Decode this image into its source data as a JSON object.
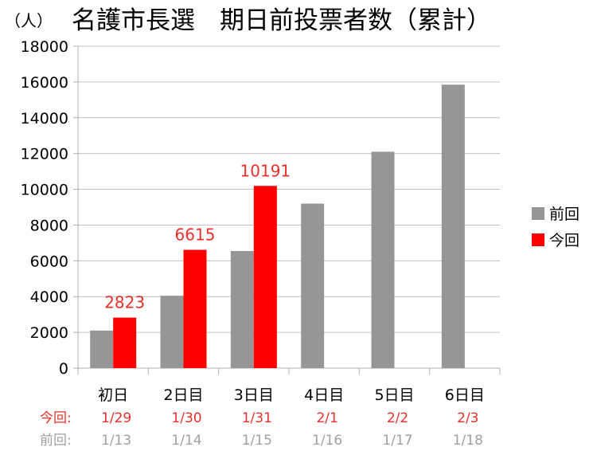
{
  "chart_data": {
    "type": "bar",
    "title_unit": "（人）",
    "title": "名護市長選　期日前投票者数（累計）",
    "categories": [
      "初日",
      "2日目",
      "3日目",
      "4日目",
      "5日目",
      "6日目"
    ],
    "series": [
      {
        "name": "前回",
        "color": "#969696",
        "values": [
          2100,
          4050,
          6550,
          9200,
          12100,
          15850
        ]
      },
      {
        "name": "今回",
        "color": "#ff0000",
        "values": [
          2823,
          6615,
          10191,
          null,
          null,
          null
        ]
      }
    ],
    "data_labels": {
      "series": "今回",
      "values": [
        "2823",
        "6615",
        "10191"
      ],
      "color": "#e8312a"
    },
    "ylim": [
      0,
      18000
    ],
    "yticks": [
      "0",
      "2000",
      "4000",
      "6000",
      "8000",
      "10000",
      "12000",
      "14000",
      "16000",
      "18000"
    ],
    "grid": true,
    "legend_position": "right",
    "date_rows": [
      {
        "prefix": "今回:",
        "dates": [
          "1/29",
          "1/30",
          "1/31",
          "2/1",
          "2/2",
          "2/3"
        ],
        "color": "#e8312a"
      },
      {
        "prefix": "前回:",
        "dates": [
          "1/13",
          "1/14",
          "1/15",
          "1/16",
          "1/17",
          "1/18"
        ],
        "color": "#a0a0a0"
      }
    ]
  }
}
